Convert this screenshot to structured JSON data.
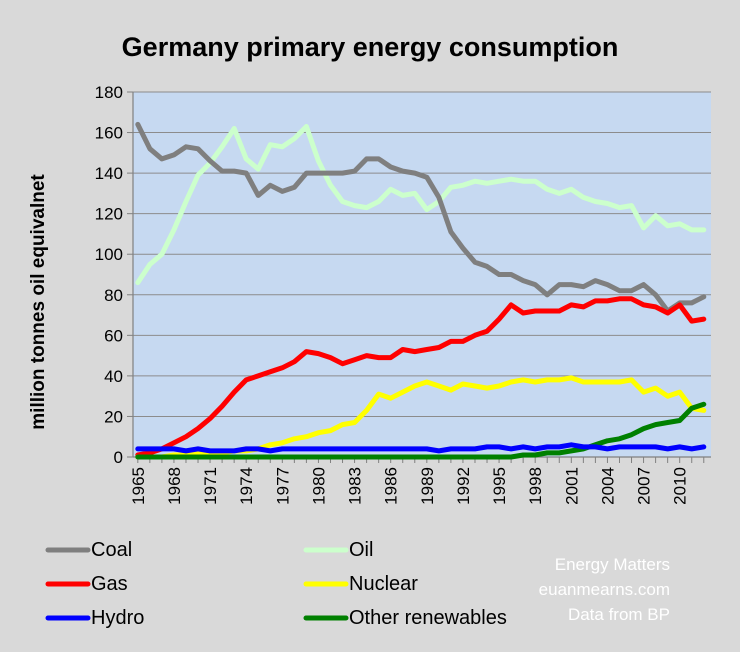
{
  "chart_data": {
    "type": "line",
    "title": "Germany primary energy consumption",
    "xlabel": "",
    "ylabel": "million tonnes oil equivalnet",
    "ylim": [
      0,
      180
    ],
    "yticks": [
      0,
      20,
      40,
      60,
      80,
      100,
      120,
      140,
      160,
      180
    ],
    "xlim": [
      1965,
      2012
    ],
    "xticks": [
      "1965",
      "1968",
      "1971",
      "1974",
      "1977",
      "1980",
      "1983",
      "1986",
      "1989",
      "1992",
      "1995",
      "1998",
      "2001",
      "2004",
      "2007",
      "2010"
    ],
    "x": [
      1965,
      1966,
      1967,
      1968,
      1969,
      1970,
      1971,
      1972,
      1973,
      1974,
      1975,
      1976,
      1977,
      1978,
      1979,
      1980,
      1981,
      1982,
      1983,
      1984,
      1985,
      1986,
      1987,
      1988,
      1989,
      1990,
      1991,
      1992,
      1993,
      1994,
      1995,
      1996,
      1997,
      1998,
      1999,
      2000,
      2001,
      2002,
      2003,
      2004,
      2005,
      2006,
      2007,
      2008,
      2009,
      2010,
      2011,
      2012
    ],
    "series": [
      {
        "name": "Coal",
        "color": "#7f7f7f",
        "values": [
          164,
          152,
          147,
          149,
          153,
          152,
          146,
          141,
          141,
          140,
          129,
          134,
          131,
          133,
          140,
          140,
          140,
          140,
          141,
          147,
          147,
          143,
          141,
          140,
          138,
          128,
          111,
          103,
          96,
          94,
          90,
          90,
          87,
          85,
          80,
          85,
          85,
          84,
          87,
          85,
          82,
          82,
          85,
          80,
          72,
          76,
          76,
          79
        ]
      },
      {
        "name": "Oil",
        "color": "#ccffcc",
        "values": [
          86,
          95,
          100,
          112,
          126,
          139,
          145,
          153,
          162,
          147,
          142,
          154,
          153,
          157,
          163,
          146,
          134,
          126,
          124,
          123,
          126,
          132,
          129,
          130,
          122,
          126,
          133,
          134,
          136,
          135,
          136,
          137,
          136,
          136,
          132,
          130,
          132,
          128,
          126,
          125,
          123,
          124,
          113,
          119,
          114,
          115,
          112,
          112
        ]
      },
      {
        "name": "Gas",
        "color": "#ff0000",
        "values": [
          1,
          2,
          4,
          7,
          10,
          14,
          19,
          25,
          32,
          38,
          40,
          42,
          44,
          47,
          52,
          51,
          49,
          46,
          48,
          50,
          49,
          49,
          53,
          52,
          53,
          54,
          57,
          57,
          60,
          62,
          68,
          75,
          71,
          72,
          72,
          72,
          75,
          74,
          77,
          77,
          78,
          78,
          75,
          74,
          71,
          75,
          67,
          68
        ]
      },
      {
        "name": "Nuclear",
        "color": "#ffff00",
        "values": [
          0,
          0,
          0,
          1,
          1,
          2,
          2,
          2,
          3,
          3,
          4,
          6,
          7,
          9,
          10,
          12,
          13,
          16,
          17,
          23,
          31,
          29,
          32,
          35,
          37,
          35,
          33,
          36,
          35,
          34,
          35,
          37,
          38,
          37,
          38,
          38,
          39,
          37,
          37,
          37,
          37,
          38,
          32,
          34,
          30,
          32,
          24,
          23
        ]
      },
      {
        "name": "Hydro",
        "color": "#0000ff",
        "values": [
          4,
          4,
          4,
          4,
          3,
          4,
          3,
          3,
          3,
          4,
          4,
          3,
          4,
          4,
          4,
          4,
          4,
          4,
          4,
          4,
          4,
          4,
          4,
          4,
          4,
          3,
          4,
          4,
          4,
          5,
          5,
          4,
          5,
          4,
          5,
          5,
          6,
          5,
          5,
          4,
          5,
          5,
          5,
          5,
          4,
          5,
          4,
          5
        ]
      },
      {
        "name": "Other renewables",
        "color": "#008000",
        "values": [
          0,
          0,
          0,
          0,
          0,
          0,
          0,
          0,
          0,
          0,
          0,
          0,
          0,
          0,
          0,
          0,
          0,
          0,
          0,
          0,
          0,
          0,
          0,
          0,
          0,
          0,
          0,
          0,
          0,
          0,
          0,
          0,
          1,
          1,
          2,
          2,
          3,
          4,
          6,
          8,
          9,
          11,
          14,
          16,
          17,
          18,
          24,
          26
        ]
      }
    ],
    "legend": {
      "placement": "bottom",
      "items": [
        "Coal",
        "Oil",
        "Gas",
        "Nuclear",
        "Hydro",
        "Other renewables"
      ]
    },
    "annotations": [
      "Energy Matters",
      "euanmearns.com",
      "Data from BP"
    ]
  }
}
